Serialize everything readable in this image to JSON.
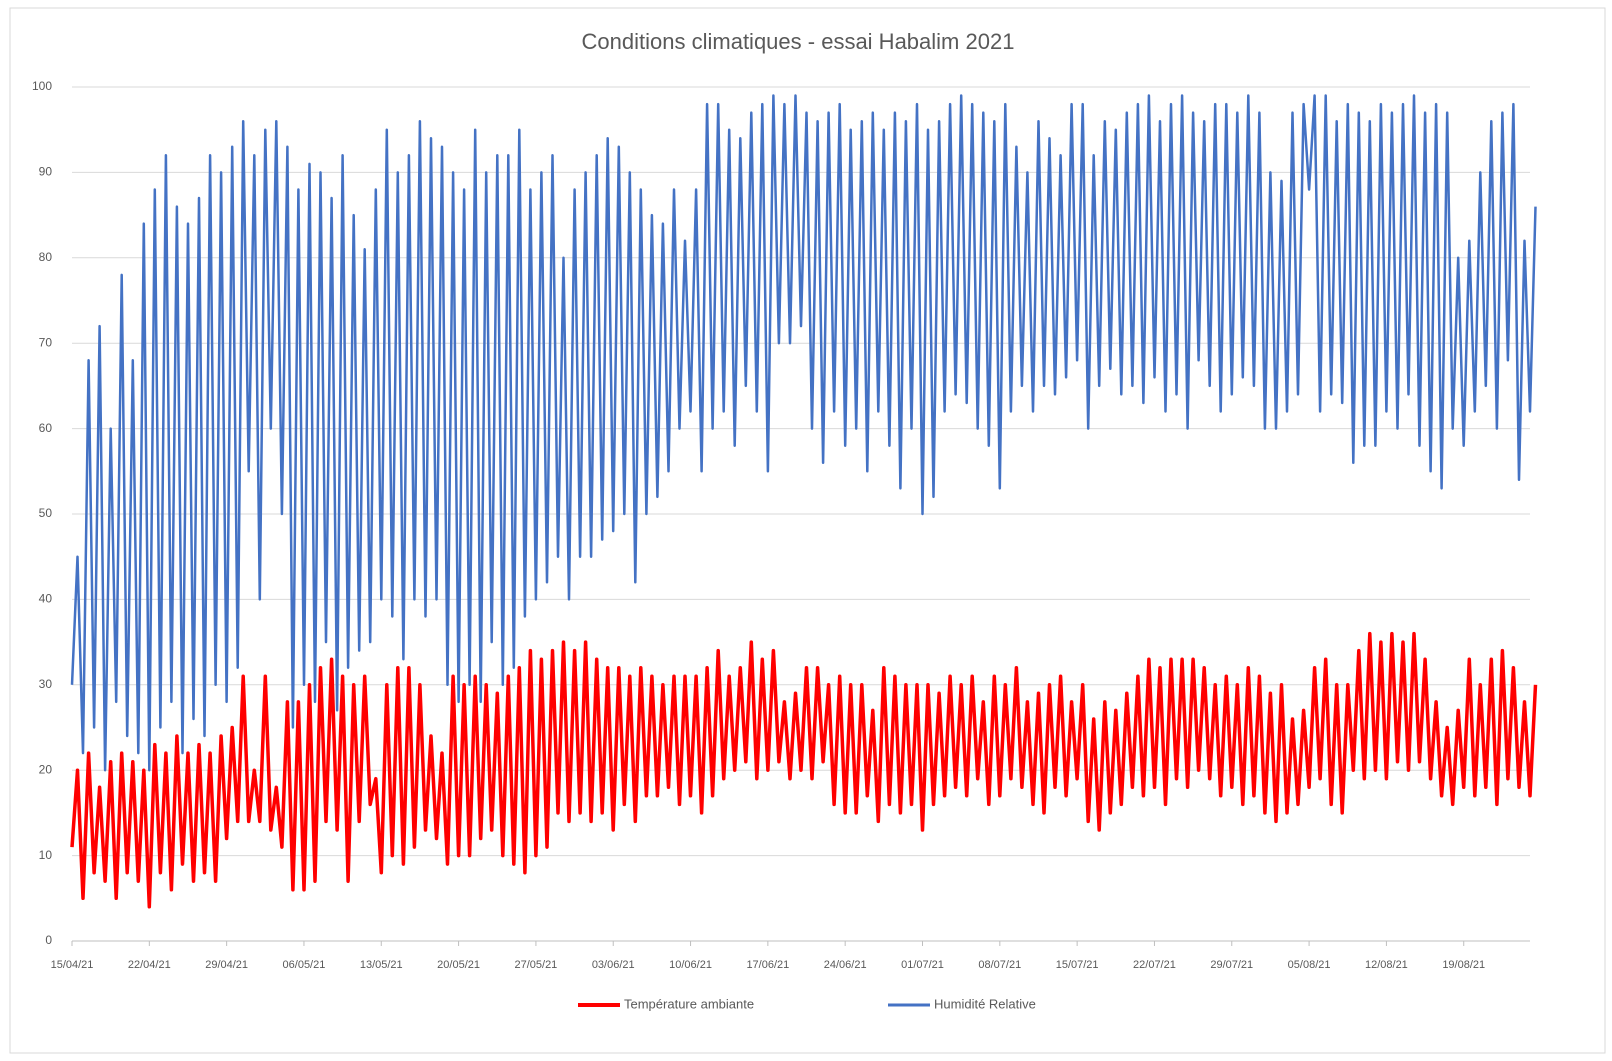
{
  "chart_data": {
    "type": "line",
    "title": "Conditions climatiques - essai Habalim 2021",
    "x": [
      "15/04/21",
      "15/04/21",
      "16/04/21",
      "16/04/21",
      "17/04/21",
      "17/04/21",
      "18/04/21",
      "18/04/21",
      "19/04/21",
      "19/04/21",
      "20/04/21",
      "20/04/21",
      "21/04/21",
      "21/04/21",
      "22/04/21",
      "22/04/21",
      "23/04/21",
      "23/04/21",
      "24/04/21",
      "24/04/21",
      "25/04/21",
      "25/04/21",
      "26/04/21",
      "26/04/21",
      "27/04/21",
      "27/04/21",
      "28/04/21",
      "28/04/21",
      "29/04/21",
      "29/04/21",
      "30/04/21",
      "30/04/21",
      "01/05/21",
      "01/05/21",
      "02/05/21",
      "02/05/21",
      "03/05/21",
      "03/05/21",
      "04/05/21",
      "04/05/21",
      "05/05/21",
      "05/05/21",
      "06/05/21",
      "06/05/21",
      "07/05/21",
      "07/05/21",
      "08/05/21",
      "08/05/21",
      "09/05/21",
      "09/05/21",
      "10/05/21",
      "10/05/21",
      "11/05/21",
      "11/05/21",
      "12/05/21",
      "12/05/21",
      "13/05/21",
      "13/05/21",
      "14/05/21",
      "14/05/21",
      "15/05/21",
      "15/05/21",
      "16/05/21",
      "16/05/21",
      "17/05/21",
      "17/05/21",
      "18/05/21",
      "18/05/21",
      "19/05/21",
      "19/05/21",
      "20/05/21",
      "20/05/21",
      "21/05/21",
      "21/05/21",
      "22/05/21",
      "22/05/21",
      "23/05/21",
      "23/05/21",
      "24/05/21",
      "24/05/21",
      "25/05/21",
      "25/05/21",
      "26/05/21",
      "26/05/21",
      "27/05/21",
      "27/05/21",
      "28/05/21",
      "28/05/21",
      "29/05/21",
      "29/05/21",
      "30/05/21",
      "30/05/21",
      "31/05/21",
      "31/05/21",
      "01/06/21",
      "01/06/21",
      "02/06/21",
      "02/06/21",
      "03/06/21",
      "03/06/21",
      "04/06/21",
      "04/06/21",
      "05/06/21",
      "05/06/21",
      "06/06/21",
      "06/06/21",
      "07/06/21",
      "07/06/21",
      "08/06/21",
      "08/06/21",
      "09/06/21",
      "09/06/21",
      "10/06/21",
      "10/06/21",
      "11/06/21",
      "11/06/21",
      "12/06/21",
      "12/06/21",
      "13/06/21",
      "13/06/21",
      "14/06/21",
      "14/06/21",
      "15/06/21",
      "15/06/21",
      "16/06/21",
      "16/06/21",
      "17/06/21",
      "17/06/21",
      "18/06/21",
      "18/06/21",
      "19/06/21",
      "19/06/21",
      "20/06/21",
      "20/06/21",
      "21/06/21",
      "21/06/21",
      "22/06/21",
      "22/06/21",
      "23/06/21",
      "23/06/21",
      "24/06/21",
      "24/06/21",
      "25/06/21",
      "25/06/21",
      "26/06/21",
      "26/06/21",
      "27/06/21",
      "27/06/21",
      "28/06/21",
      "28/06/21",
      "29/06/21",
      "29/06/21",
      "30/06/21",
      "30/06/21",
      "01/07/21",
      "01/07/21",
      "02/07/21",
      "02/07/21",
      "03/07/21",
      "03/07/21",
      "04/07/21",
      "04/07/21",
      "05/07/21",
      "05/07/21",
      "06/07/21",
      "06/07/21",
      "07/07/21",
      "07/07/21",
      "08/07/21",
      "08/07/21",
      "09/07/21",
      "09/07/21",
      "10/07/21",
      "10/07/21",
      "11/07/21",
      "11/07/21",
      "12/07/21",
      "12/07/21",
      "13/07/21",
      "13/07/21",
      "14/07/21",
      "14/07/21",
      "15/07/21",
      "15/07/21",
      "16/07/21",
      "16/07/21",
      "17/07/21",
      "17/07/21",
      "18/07/21",
      "18/07/21",
      "19/07/21",
      "19/07/21",
      "20/07/21",
      "20/07/21",
      "21/07/21",
      "21/07/21",
      "22/07/21",
      "22/07/21",
      "23/07/21",
      "23/07/21",
      "24/07/21",
      "24/07/21",
      "25/07/21",
      "25/07/21",
      "26/07/21",
      "26/07/21",
      "27/07/21",
      "27/07/21",
      "28/07/21",
      "28/07/21",
      "29/07/21",
      "29/07/21",
      "30/07/21",
      "30/07/21",
      "31/07/21",
      "31/07/21",
      "01/08/21",
      "01/08/21",
      "02/08/21",
      "02/08/21",
      "03/08/21",
      "03/08/21",
      "04/08/21",
      "04/08/21",
      "05/08/21",
      "05/08/21",
      "06/08/21",
      "06/08/21",
      "07/08/21",
      "07/08/21",
      "08/08/21",
      "08/08/21",
      "09/08/21",
      "09/08/21",
      "10/08/21",
      "10/08/21",
      "11/08/21",
      "11/08/21",
      "12/08/21",
      "12/08/21",
      "13/08/21",
      "13/08/21",
      "14/08/21",
      "14/08/21",
      "15/08/21",
      "15/08/21",
      "16/08/21",
      "16/08/21",
      "17/08/21",
      "17/08/21",
      "18/08/21",
      "18/08/21",
      "19/08/21",
      "19/08/21",
      "20/08/21",
      "20/08/21",
      "21/08/21",
      "21/08/21",
      "22/08/21",
      "22/08/21",
      "23/08/21",
      "23/08/21",
      "24/08/21",
      "24/08/21",
      "25/08/21",
      "25/08/21"
    ],
    "series": [
      {
        "name": "Température ambiante",
        "color": "#ff0000",
        "values": [
          11,
          20,
          5,
          22,
          8,
          18,
          7,
          21,
          5,
          22,
          8,
          21,
          7,
          20,
          4,
          23,
          8,
          22,
          6,
          24,
          9,
          22,
          7,
          23,
          8,
          22,
          7,
          24,
          12,
          25,
          14,
          31,
          14,
          20,
          14,
          31,
          13,
          18,
          11,
          28,
          6,
          28,
          6,
          30,
          7,
          32,
          14,
          33,
          13,
          31,
          7,
          30,
          14,
          31,
          16,
          19,
          8,
          30,
          10,
          32,
          9,
          32,
          11,
          30,
          13,
          24,
          12,
          22,
          9,
          31,
          10,
          30,
          10,
          31,
          12,
          30,
          13,
          29,
          10,
          31,
          9,
          32,
          8,
          34,
          10,
          33,
          11,
          34,
          15,
          35,
          14,
          34,
          15,
          35,
          14,
          33,
          15,
          32,
          13,
          32,
          16,
          31,
          14,
          32,
          17,
          31,
          17,
          30,
          18,
          31,
          16,
          31,
          17,
          31,
          15,
          32,
          17,
          34,
          19,
          31,
          20,
          32,
          21,
          35,
          19,
          33,
          20,
          34,
          21,
          28,
          19,
          29,
          20,
          32,
          19,
          32,
          21,
          30,
          16,
          31,
          15,
          30,
          15,
          30,
          17,
          27,
          14,
          32,
          16,
          31,
          15,
          30,
          16,
          30,
          13,
          30,
          16,
          29,
          17,
          31,
          18,
          30,
          17,
          31,
          19,
          28,
          16,
          31,
          17,
          30,
          19,
          32,
          18,
          28,
          16,
          29,
          15,
          30,
          18,
          31,
          17,
          28,
          19,
          30,
          14,
          26,
          13,
          28,
          15,
          27,
          16,
          29,
          18,
          31,
          17,
          33,
          18,
          32,
          16,
          33,
          19,
          33,
          18,
          33,
          20,
          32,
          19,
          30,
          17,
          31,
          18,
          30,
          16,
          32,
          17,
          31,
          15,
          29,
          14,
          30,
          15,
          26,
          16,
          27,
          18,
          32,
          19,
          33,
          16,
          30,
          15,
          30,
          20,
          34,
          19,
          36,
          20,
          35,
          19,
          36,
          21,
          35,
          20,
          36,
          21,
          33,
          19,
          28,
          17,
          25,
          16,
          27,
          18,
          33,
          17,
          30,
          18,
          33,
          16,
          34,
          19,
          32,
          18,
          28,
          17,
          30
        ]
      },
      {
        "name": "Humidité Relative",
        "color": "#4472c4",
        "values": [
          30,
          45,
          22,
          68,
          25,
          72,
          20,
          60,
          28,
          78,
          24,
          68,
          22,
          84,
          20,
          88,
          25,
          92,
          28,
          86,
          22,
          84,
          26,
          87,
          24,
          92,
          30,
          90,
          28,
          93,
          32,
          96,
          55,
          92,
          40,
          95,
          60,
          96,
          50,
          93,
          25,
          88,
          30,
          91,
          28,
          90,
          35,
          87,
          27,
          92,
          32,
          85,
          34,
          81,
          35,
          88,
          40,
          95,
          38,
          90,
          33,
          92,
          40,
          96,
          38,
          94,
          40,
          93,
          30,
          90,
          28,
          88,
          30,
          95,
          28,
          90,
          35,
          92,
          30,
          92,
          32,
          95,
          38,
          88,
          40,
          90,
          42,
          92,
          45,
          80,
          40,
          88,
          45,
          90,
          45,
          92,
          47,
          94,
          48,
          93,
          50,
          90,
          42,
          88,
          50,
          85,
          52,
          84,
          55,
          88,
          60,
          82,
          62,
          88,
          55,
          98,
          60,
          98,
          62,
          95,
          58,
          94,
          65,
          97,
          62,
          98,
          55,
          99,
          70,
          98,
          70,
          99,
          72,
          97,
          60,
          96,
          56,
          97,
          62,
          98,
          58,
          95,
          60,
          96,
          55,
          97,
          62,
          95,
          58,
          97,
          53,
          96,
          60,
          98,
          50,
          95,
          52,
          96,
          62,
          98,
          64,
          99,
          63,
          98,
          60,
          97,
          58,
          96,
          53,
          98,
          62,
          93,
          65,
          90,
          62,
          96,
          65,
          94,
          64,
          92,
          66,
          98,
          68,
          98,
          60,
          92,
          65,
          96,
          67,
          95,
          64,
          97,
          65,
          98,
          63,
          99,
          66,
          96,
          62,
          98,
          64,
          99,
          60,
          97,
          68,
          96,
          65,
          98,
          62,
          98,
          64,
          97,
          66,
          99,
          65,
          97,
          60,
          90,
          60,
          89,
          62,
          97,
          64,
          98,
          88,
          99,
          62,
          99,
          64,
          96,
          63,
          98,
          56,
          97,
          58,
          96,
          58,
          98,
          62,
          97,
          60,
          98,
          64,
          99,
          58,
          97,
          55,
          98,
          53,
          97,
          60,
          80,
          58,
          82,
          62,
          90,
          65,
          96,
          60,
          97,
          68,
          98,
          54,
          82,
          62,
          86
        ]
      }
    ],
    "xlim": [
      "15/04/21",
      "25/08/21"
    ],
    "xticks": [
      "15/04/21",
      "22/04/21",
      "29/04/21",
      "06/05/21",
      "13/05/21",
      "20/05/21",
      "27/05/21",
      "03/06/21",
      "10/06/21",
      "17/06/21",
      "24/06/21",
      "01/07/21",
      "08/07/21",
      "15/07/21",
      "22/07/21",
      "29/07/21",
      "05/08/21",
      "12/08/21",
      "19/08/21"
    ],
    "ylim": [
      0,
      100
    ],
    "yticks": [
      0,
      10,
      20,
      30,
      40,
      50,
      60,
      70,
      80,
      90,
      100
    ],
    "grid": true,
    "legend": "bottom"
  }
}
